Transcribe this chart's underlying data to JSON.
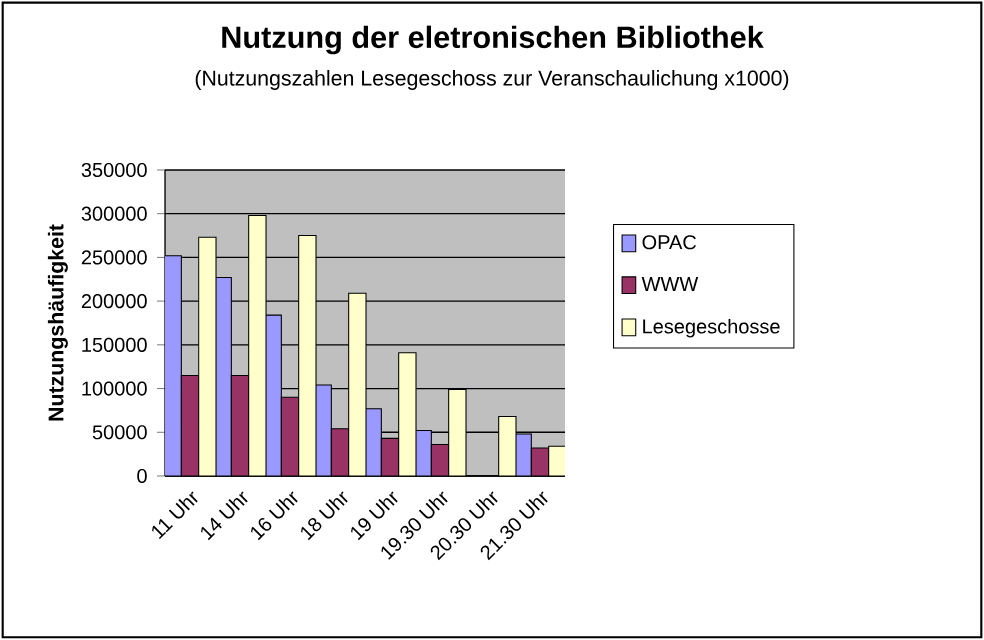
{
  "chart_data": {
    "type": "bar",
    "title": "Nutzung der eletronischen Bibliothek",
    "subtitle": "(Nutzungszahlen Lesegeschoss zur Veranschaulichung x1000)",
    "ylabel": "Nutzungshäufigkeit",
    "categories": [
      "11 Uhr",
      "14 Uhr",
      "16 Uhr",
      "18 Uhr",
      "19 Uhr",
      "19.30 Uhr",
      "20.30 Uhr",
      "21.30 Uhr"
    ],
    "series": [
      {
        "name": "OPAC",
        "color": "#9999ff",
        "values": [
          252000,
          227000,
          184000,
          104000,
          77000,
          52000,
          null,
          48000
        ]
      },
      {
        "name": "WWW",
        "color": "#993366",
        "values": [
          115000,
          115000,
          90000,
          54000,
          43000,
          36000,
          null,
          32000
        ]
      },
      {
        "name": "Lesegeschosse",
        "color": "#ffffcc",
        "values": [
          273000,
          298000,
          275000,
          209000,
          141000,
          99000,
          68000,
          34000
        ]
      }
    ],
    "ylim": [
      0,
      350000
    ],
    "yticks": [
      0,
      50000,
      100000,
      150000,
      200000,
      250000,
      300000,
      350000
    ],
    "grid": "y",
    "legend": "right"
  }
}
